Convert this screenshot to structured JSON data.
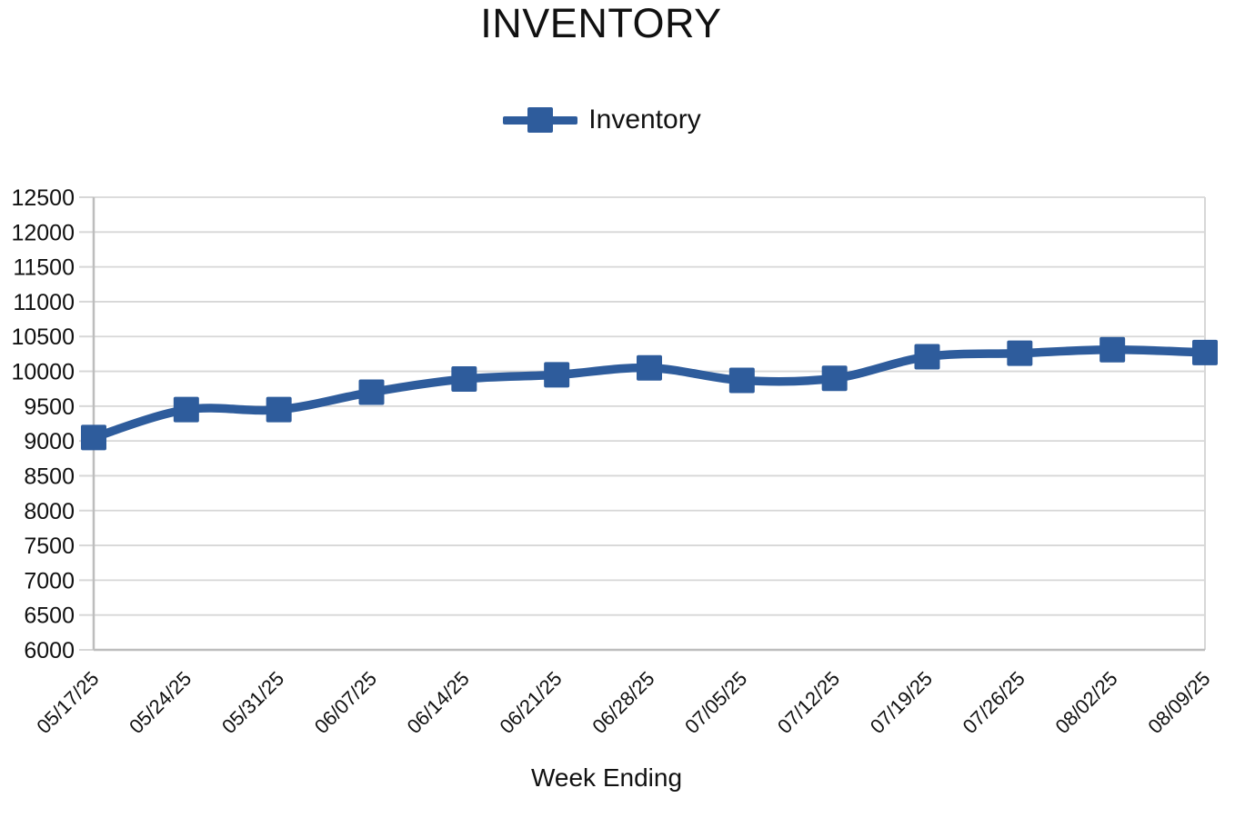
{
  "title": "INVENTORY",
  "legend": {
    "label": "Inventory"
  },
  "x_axis_title": "Week Ending",
  "colors": {
    "series_blue": "#2E5C9C",
    "gridline": "#D7D7D7",
    "axis": "#BDBDBD",
    "text": "#111111",
    "background": "#FFFFFF"
  },
  "chart_data": {
    "type": "line",
    "title": "INVENTORY",
    "xlabel": "Week Ending",
    "ylabel": "",
    "categories": [
      "05/17/25",
      "05/24/25",
      "05/31/25",
      "06/07/25",
      "06/14/25",
      "06/21/25",
      "06/28/25",
      "07/05/25",
      "07/12/25",
      "07/19/25",
      "07/26/25",
      "08/02/25",
      "08/09/25"
    ],
    "series": [
      {
        "name": "Inventory",
        "values": [
          9050,
          9450,
          9450,
          9700,
          9890,
          9950,
          10050,
          9870,
          9900,
          10210,
          10260,
          10310,
          10270
        ]
      }
    ],
    "ylim": [
      6000,
      12500
    ],
    "ytick_step": 500,
    "grid": true,
    "legend_position": "top",
    "marker": "square",
    "smooth": true
  }
}
